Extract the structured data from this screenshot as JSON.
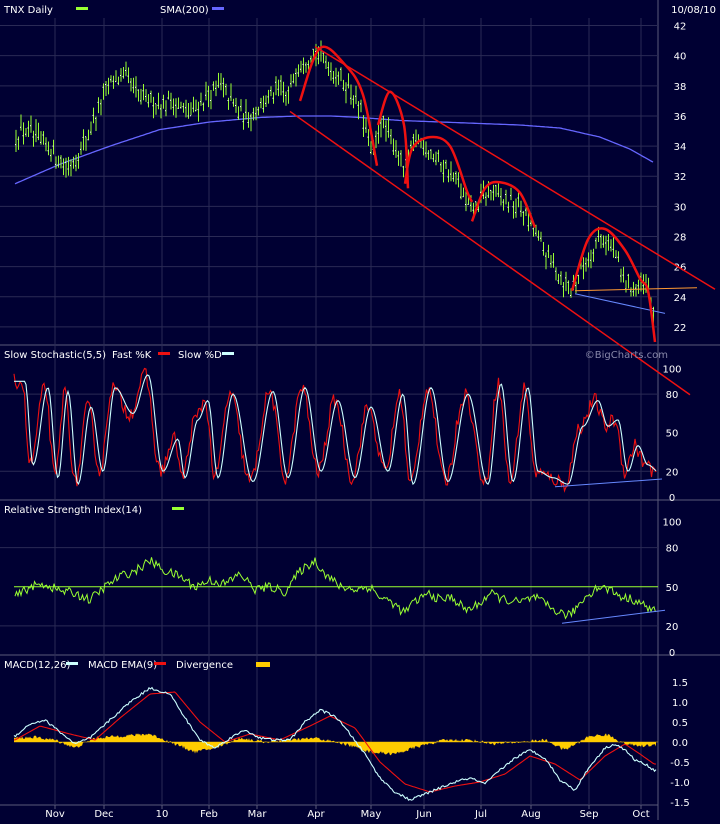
{
  "colors": {
    "background": "#000033",
    "panel_border": "#5a5a7a",
    "grid": "#2a2a55",
    "price_candles": "#99ff33",
    "sma": "#6666ff",
    "pattern": "#ee1111",
    "fast_k": "#ee1111",
    "slow_d": "#ccffff",
    "rsi": "#99ff33",
    "macd": "#ccffff",
    "macd_ema": "#ee1111",
    "divergence": "#ffcc00",
    "trendline_blue": "#6688ff",
    "support_orange": "#ff9933"
  },
  "header": {
    "symbol_label": "TNX Daily",
    "sma_label": "SMA(200)",
    "date": "10/08/10"
  },
  "watermark": "©BigCharts.com",
  "chart_data": [
    {
      "type": "line",
      "id": "price",
      "ylim": [
        21,
        42.5
      ],
      "yticks": [
        "22",
        "24",
        "26",
        "28",
        "30",
        "32",
        "34",
        "36",
        "38",
        "40",
        "42"
      ],
      "x_labels": [
        "Nov",
        "Dec",
        "10",
        "Feb",
        "Mar",
        "Apr",
        "May",
        "Jun",
        "Jul",
        "Aug",
        "Sep",
        "Oct"
      ],
      "price_anchors": [
        [
          0,
          33.6
        ],
        [
          10,
          34.5
        ],
        [
          25,
          35.2
        ],
        [
          40,
          34.3
        ],
        [
          55,
          33.5
        ],
        [
          68,
          32.6
        ],
        [
          78,
          33.5
        ],
        [
          90,
          35.0
        ],
        [
          100,
          36.8
        ],
        [
          110,
          38.1
        ],
        [
          120,
          38.6
        ],
        [
          130,
          38.2
        ],
        [
          140,
          37.2
        ],
        [
          150,
          37.0
        ],
        [
          160,
          36.8
        ],
        [
          170,
          37.0
        ],
        [
          180,
          36.6
        ],
        [
          190,
          36.2
        ],
        [
          200,
          36.8
        ],
        [
          210,
          37.5
        ],
        [
          220,
          38.0
        ],
        [
          228,
          37.3
        ],
        [
          236,
          36.5
        ],
        [
          244,
          35.9
        ],
        [
          252,
          36.2
        ],
        [
          262,
          36.7
        ],
        [
          272,
          37.4
        ],
        [
          280,
          37.8
        ],
        [
          288,
          37.2
        ],
        [
          296,
          39.2
        ],
        [
          306,
          39.8
        ],
        [
          316,
          40.2
        ],
        [
          326,
          39.6
        ],
        [
          336,
          38.8
        ],
        [
          346,
          38.1
        ],
        [
          356,
          37.0
        ],
        [
          366,
          35.2
        ],
        [
          373,
          33.0
        ],
        [
          380,
          35.8
        ],
        [
          388,
          34.8
        ],
        [
          396,
          34.0
        ],
        [
          402,
          32.5
        ],
        [
          408,
          33.0
        ],
        [
          416,
          34.5
        ],
        [
          426,
          34.0
        ],
        [
          436,
          33.2
        ],
        [
          446,
          32.5
        ],
        [
          456,
          31.8
        ],
        [
          466,
          30.2
        ],
        [
          474,
          29.6
        ],
        [
          482,
          30.6
        ],
        [
          492,
          30.9
        ],
        [
          502,
          30.4
        ],
        [
          512,
          30.2
        ],
        [
          522,
          29.8
        ],
        [
          532,
          28.6
        ],
        [
          542,
          27.4
        ],
        [
          552,
          26.1
        ],
        [
          562,
          25.2
        ],
        [
          572,
          24.4
        ],
        [
          580,
          25.6
        ],
        [
          590,
          26.8
        ],
        [
          600,
          27.9
        ],
        [
          608,
          27.7
        ],
        [
          616,
          26.9
        ],
        [
          622,
          25.1
        ],
        [
          630,
          24.8
        ],
        [
          638,
          24.6
        ],
        [
          645,
          24.7
        ],
        [
          650,
          24.0
        ],
        [
          654,
          23.0
        ]
      ],
      "sma_anchors": [
        [
          15,
          31.5
        ],
        [
          60,
          32.8
        ],
        [
          110,
          34.0
        ],
        [
          160,
          35.1
        ],
        [
          210,
          35.6
        ],
        [
          260,
          35.9
        ],
        [
          300,
          36.0
        ],
        [
          330,
          36.0
        ],
        [
          360,
          35.9
        ],
        [
          400,
          35.7
        ],
        [
          440,
          35.6
        ],
        [
          480,
          35.5
        ],
        [
          520,
          35.4
        ],
        [
          560,
          35.2
        ],
        [
          600,
          34.6
        ],
        [
          630,
          33.8
        ],
        [
          654,
          32.9
        ]
      ],
      "annotations": {
        "channel_upper": [
          [
            315,
            40.6
          ],
          [
            715,
            24.5
          ]
        ],
        "channel_lower": [
          [
            290,
            36.3
          ],
          [
            690,
            17.5
          ]
        ],
        "support_line": [
          [
            575,
            24.4
          ],
          [
            697,
            24.6
          ]
        ],
        "blue_trend": [
          [
            575,
            24.2
          ],
          [
            665,
            22.9
          ]
        ],
        "arcs": [
          [
            [
              300,
              37.0
            ],
            [
              320,
              40.5
            ],
            [
              345,
              39.4
            ],
            [
              363,
              37.4
            ],
            [
              377,
              32.7
            ]
          ],
          [
            [
              378,
              35.4
            ],
            [
              390,
              37.6
            ],
            [
              404,
              35.4
            ],
            [
              408,
              31.2
            ]
          ],
          [
            [
              405,
              31.5
            ],
            [
              412,
              33.8
            ],
            [
              430,
              34.6
            ],
            [
              450,
              34.0
            ],
            [
              467,
              31.0
            ],
            [
              472,
              30.3
            ]
          ],
          [
            [
              472,
              29.0
            ],
            [
              485,
              31.2
            ],
            [
              500,
              31.6
            ],
            [
              520,
              30.9
            ],
            [
              535,
              28.6
            ]
          ],
          [
            [
              572,
              24.4
            ],
            [
              588,
              27.8
            ],
            [
              605,
              28.5
            ],
            [
              625,
              27.1
            ],
            [
              640,
              25.2
            ],
            [
              648,
              24.4
            ],
            [
              655,
              21.0
            ]
          ]
        ]
      }
    },
    {
      "type": "line",
      "id": "stochastic",
      "title": "Slow Stochastic(5,5)",
      "legend": [
        {
          "name": "Fast %K",
          "color": "#ee1111"
        },
        {
          "name": "Slow %D",
          "color": "#ccffff"
        }
      ],
      "ylim": [
        0,
        105
      ],
      "yticks": [
        "0",
        "20",
        "50",
        "80",
        "100"
      ],
      "cycles": [
        [
          22,
          90
        ],
        [
          30,
          25
        ],
        [
          45,
          85
        ],
        [
          55,
          15
        ],
        [
          65,
          82
        ],
        [
          75,
          10
        ],
        [
          88,
          70
        ],
        [
          100,
          20
        ],
        [
          112,
          85
        ],
        [
          130,
          65
        ],
        [
          145,
          95
        ],
        [
          160,
          20
        ],
        [
          175,
          45
        ],
        [
          182,
          15
        ],
        [
          195,
          60
        ],
        [
          205,
          75
        ],
        [
          215,
          15
        ],
        [
          230,
          80
        ],
        [
          250,
          12
        ],
        [
          270,
          82
        ],
        [
          285,
          15
        ],
        [
          302,
          85
        ],
        [
          318,
          20
        ],
        [
          335,
          75
        ],
        [
          352,
          15
        ],
        [
          368,
          70
        ],
        [
          385,
          20
        ],
        [
          400,
          80
        ],
        [
          410,
          10
        ],
        [
          428,
          85
        ],
        [
          445,
          12
        ],
        [
          465,
          80
        ],
        [
          485,
          10
        ],
        [
          498,
          88
        ],
        [
          510,
          12
        ],
        [
          525,
          85
        ],
        [
          535,
          20
        ],
        [
          550,
          15
        ],
        [
          565,
          10
        ],
        [
          580,
          55
        ],
        [
          595,
          75
        ],
        [
          605,
          55
        ],
        [
          615,
          60
        ],
        [
          625,
          20
        ],
        [
          635,
          40
        ],
        [
          645,
          25
        ],
        [
          655,
          20
        ]
      ],
      "trendline": [
        [
          555,
          8
        ],
        [
          662,
          14
        ]
      ]
    },
    {
      "type": "line",
      "id": "rsi",
      "title": "Relative Strength Index(14)",
      "ylim": [
        0,
        105
      ],
      "yticks": [
        "0",
        "20",
        "50",
        "80",
        "100"
      ],
      "reference": 50,
      "anchors": [
        [
          15,
          42
        ],
        [
          30,
          50
        ],
        [
          45,
          52
        ],
        [
          60,
          47
        ],
        [
          75,
          45
        ],
        [
          90,
          40
        ],
        [
          105,
          50
        ],
        [
          120,
          58
        ],
        [
          135,
          62
        ],
        [
          150,
          70
        ],
        [
          165,
          62
        ],
        [
          180,
          58
        ],
        [
          195,
          50
        ],
        [
          210,
          55
        ],
        [
          225,
          52
        ],
        [
          240,
          60
        ],
        [
          255,
          48
        ],
        [
          270,
          50
        ],
        [
          285,
          46
        ],
        [
          300,
          62
        ],
        [
          315,
          70
        ],
        [
          325,
          60
        ],
        [
          340,
          50
        ],
        [
          355,
          48
        ],
        [
          370,
          50
        ],
        [
          380,
          42
        ],
        [
          392,
          38
        ],
        [
          404,
          30
        ],
        [
          414,
          38
        ],
        [
          428,
          45
        ],
        [
          440,
          40
        ],
        [
          452,
          42
        ],
        [
          466,
          32
        ],
        [
          478,
          36
        ],
        [
          490,
          45
        ],
        [
          505,
          40
        ],
        [
          520,
          38
        ],
        [
          535,
          42
        ],
        [
          548,
          35
        ],
        [
          560,
          30
        ],
        [
          570,
          28
        ],
        [
          585,
          42
        ],
        [
          598,
          50
        ],
        [
          610,
          48
        ],
        [
          622,
          42
        ],
        [
          635,
          40
        ],
        [
          645,
          35
        ],
        [
          654,
          32
        ]
      ],
      "trendline": [
        [
          562,
          22
        ],
        [
          665,
          32
        ]
      ]
    },
    {
      "type": "line",
      "id": "macd",
      "legend": [
        {
          "name": "MACD(12,26)",
          "color": "#ccffff"
        },
        {
          "name": "MACD EMA(9)",
          "color": "#ee1111"
        },
        {
          "name": "Divergence",
          "color": "#ffcc00"
        }
      ],
      "ylim": [
        -1.6,
        1.75
      ],
      "yticks": [
        "1.5",
        "1.0",
        "0.5",
        "0.0",
        "-0.5",
        "-1.0",
        "-1.5"
      ],
      "macd_anchors": [
        [
          15,
          0.15
        ],
        [
          30,
          0.45
        ],
        [
          45,
          0.55
        ],
        [
          60,
          0.25
        ],
        [
          75,
          -0.05
        ],
        [
          90,
          0.1
        ],
        [
          110,
          0.55
        ],
        [
          130,
          1.0
        ],
        [
          150,
          1.35
        ],
        [
          170,
          1.2
        ],
        [
          185,
          0.6
        ],
        [
          200,
          0.05
        ],
        [
          215,
          -0.15
        ],
        [
          230,
          0.1
        ],
        [
          245,
          0.3
        ],
        [
          260,
          0.1
        ],
        [
          275,
          0.05
        ],
        [
          290,
          0.05
        ],
        [
          305,
          0.5
        ],
        [
          320,
          0.8
        ],
        [
          335,
          0.65
        ],
        [
          350,
          0.2
        ],
        [
          365,
          -0.3
        ],
        [
          380,
          -0.9
        ],
        [
          395,
          -1.25
        ],
        [
          410,
          -1.45
        ],
        [
          425,
          -1.3
        ],
        [
          440,
          -1.15
        ],
        [
          455,
          -1.0
        ],
        [
          470,
          -0.9
        ],
        [
          485,
          -1.05
        ],
        [
          500,
          -0.7
        ],
        [
          515,
          -0.4
        ],
        [
          530,
          -0.2
        ],
        [
          545,
          -0.4
        ],
        [
          560,
          -0.95
        ],
        [
          575,
          -1.2
        ],
        [
          590,
          -0.6
        ],
        [
          605,
          -0.15
        ],
        [
          615,
          -0.05
        ],
        [
          625,
          -0.2
        ],
        [
          635,
          -0.45
        ],
        [
          645,
          -0.55
        ],
        [
          654,
          -0.7
        ]
      ],
      "ema_anchors": [
        [
          15,
          0.05
        ],
        [
          40,
          0.4
        ],
        [
          70,
          0.2
        ],
        [
          95,
          0.05
        ],
        [
          120,
          0.6
        ],
        [
          150,
          1.2
        ],
        [
          175,
          1.25
        ],
        [
          200,
          0.5
        ],
        [
          225,
          0.0
        ],
        [
          250,
          0.2
        ],
        [
          280,
          0.05
        ],
        [
          310,
          0.4
        ],
        [
          330,
          0.65
        ],
        [
          355,
          0.35
        ],
        [
          380,
          -0.5
        ],
        [
          405,
          -1.05
        ],
        [
          430,
          -1.25
        ],
        [
          455,
          -1.1
        ],
        [
          480,
          -1.0
        ],
        [
          505,
          -0.8
        ],
        [
          530,
          -0.35
        ],
        [
          555,
          -0.55
        ],
        [
          580,
          -0.95
        ],
        [
          605,
          -0.35
        ],
        [
          625,
          -0.05
        ],
        [
          640,
          -0.3
        ],
        [
          654,
          -0.55
        ]
      ],
      "divergence_anchors": [
        [
          15,
          0.1
        ],
        [
          35,
          0.12
        ],
        [
          55,
          0.05
        ],
        [
          75,
          -0.15
        ],
        [
          95,
          0.1
        ],
        [
          120,
          0.15
        ],
        [
          150,
          0.2
        ],
        [
          175,
          -0.05
        ],
        [
          195,
          -0.25
        ],
        [
          215,
          -0.15
        ],
        [
          240,
          0.1
        ],
        [
          265,
          0.0
        ],
        [
          290,
          0.05
        ],
        [
          315,
          0.1
        ],
        [
          345,
          -0.05
        ],
        [
          370,
          -0.25
        ],
        [
          395,
          -0.3
        ],
        [
          420,
          -0.1
        ],
        [
          445,
          0.05
        ],
        [
          470,
          0.05
        ],
        [
          495,
          -0.05
        ],
        [
          520,
          0.0
        ],
        [
          545,
          0.05
        ],
        [
          565,
          -0.2
        ],
        [
          590,
          0.15
        ],
        [
          608,
          0.18
        ],
        [
          625,
          -0.05
        ],
        [
          640,
          -0.1
        ],
        [
          654,
          -0.08
        ]
      ]
    }
  ]
}
